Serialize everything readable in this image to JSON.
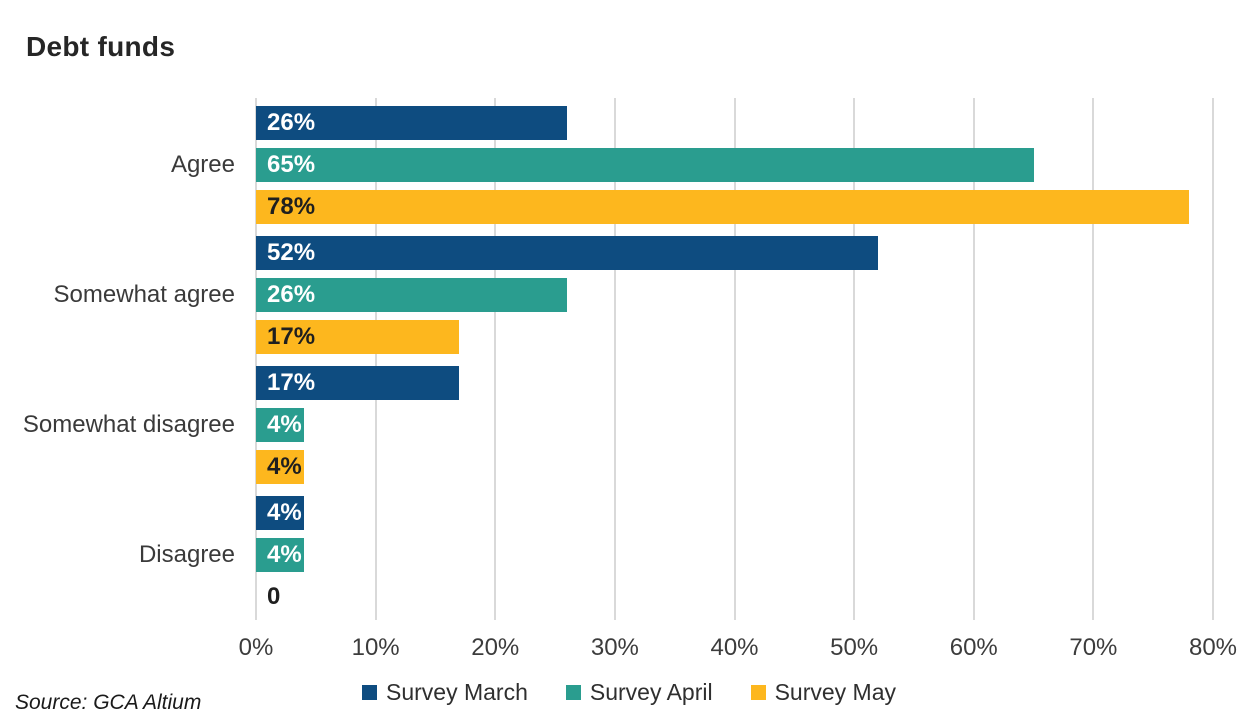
{
  "title": "Debt funds",
  "source_note": "Source: GCA Altium",
  "colors": {
    "survey_march": "#0e4c80",
    "survey_april": "#2a9d8f",
    "survey_may": "#fdb71e",
    "gridline": "#d9d9d9",
    "text": "#3c3c3c"
  },
  "chart_data": {
    "type": "bar",
    "orientation": "horizontal",
    "title": "Debt funds",
    "categories": [
      "Agree",
      "Somewhat agree",
      "Somewhat disagree",
      "Disagree"
    ],
    "series": [
      {
        "name": "Survey March",
        "color": "#0e4c80",
        "label_color": "#ffffff",
        "values": [
          26,
          52,
          17,
          4
        ],
        "labels": [
          "26%",
          "52%",
          "17%",
          "4%"
        ]
      },
      {
        "name": "Survey April",
        "color": "#2a9d8f",
        "label_color": "#ffffff",
        "values": [
          65,
          26,
          4,
          4
        ],
        "labels": [
          "65%",
          "26%",
          "4%",
          "4%"
        ]
      },
      {
        "name": "Survey May",
        "color": "#fdb71e",
        "label_color": "#1f1f1f",
        "values": [
          78,
          17,
          4,
          0
        ],
        "labels": [
          "78%",
          "17%",
          "4%",
          "0"
        ]
      }
    ],
    "x_ticks": [
      "0%",
      "10%",
      "20%",
      "30%",
      "40%",
      "50%",
      "60%",
      "70%",
      "80%"
    ],
    "xlim": [
      0,
      80
    ],
    "grid": "vertical",
    "legend_position": "bottom",
    "source": "Source: GCA Altium"
  }
}
